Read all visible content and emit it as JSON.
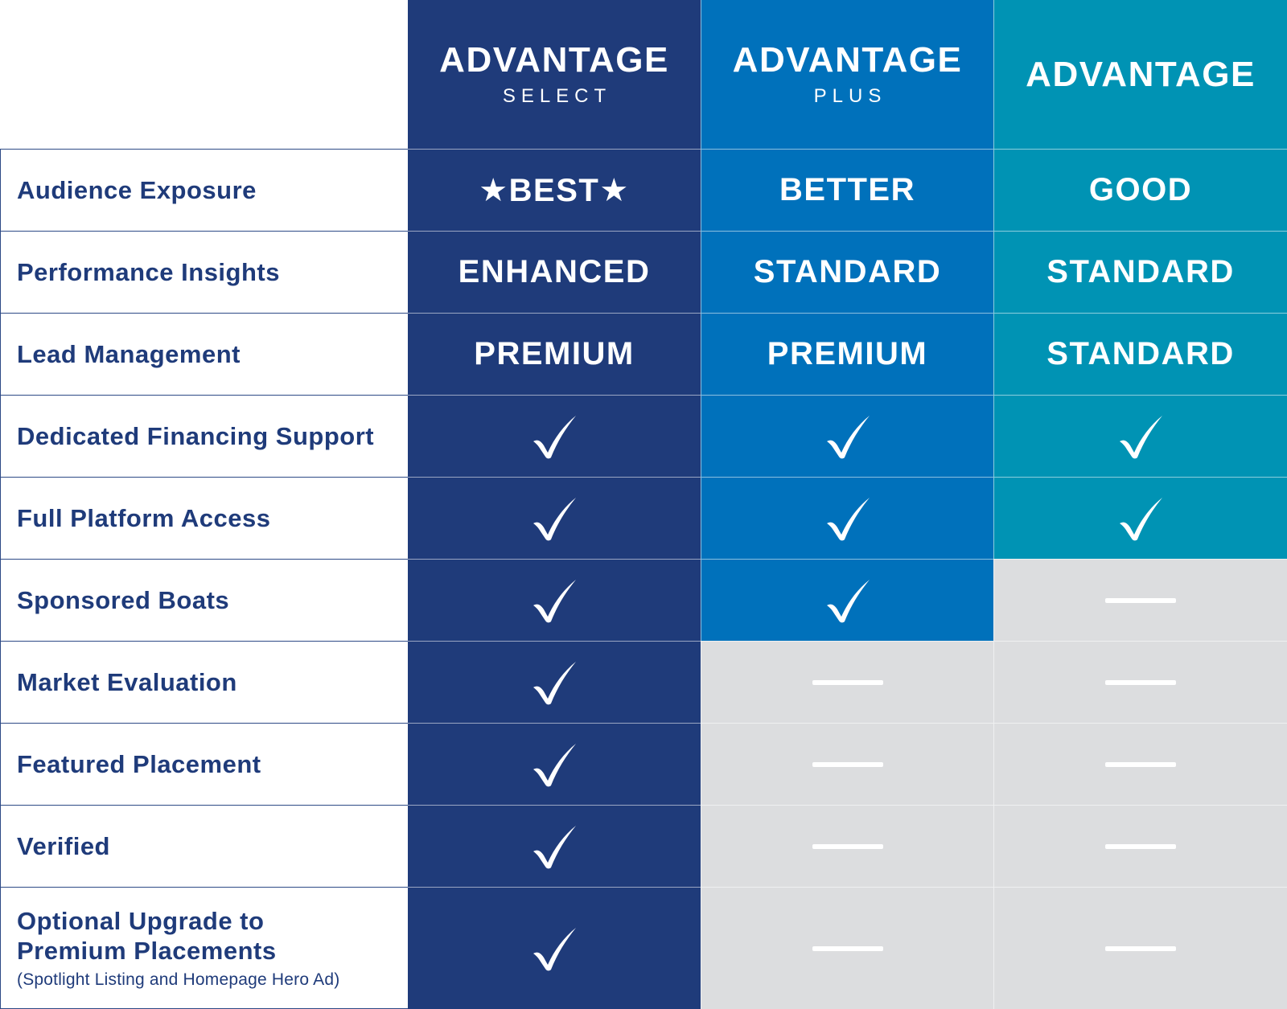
{
  "tiers": [
    {
      "title": "ADVANTAGE",
      "subtitle": "SELECT",
      "color": "#1f3b7a"
    },
    {
      "title": "ADVANTAGE",
      "subtitle": "PLUS",
      "color": "#0071bb"
    },
    {
      "title": "ADVANTAGE",
      "subtitle": "",
      "color": "#0093b4"
    }
  ],
  "unavailable_color": "#dcdddf",
  "label_color": "#1f3b7a",
  "rows": [
    {
      "label": "Audience Exposure",
      "values": [
        "★BEST★",
        "BETTER",
        "GOOD"
      ]
    },
    {
      "label": "Performance Insights",
      "values": [
        "ENHANCED",
        "STANDARD",
        "STANDARD"
      ]
    },
    {
      "label": "Lead Management",
      "values": [
        "PREMIUM",
        "PREMIUM",
        "STANDARD"
      ]
    },
    {
      "label": "Dedicated Financing Support",
      "values": [
        "check",
        "check",
        "check"
      ]
    },
    {
      "label": "Full Platform Access",
      "values": [
        "check",
        "check",
        "check"
      ]
    },
    {
      "label": "Sponsored Boats",
      "values": [
        "check",
        "check",
        "dash"
      ]
    },
    {
      "label": "Market Evaluation",
      "values": [
        "check",
        "dash",
        "dash"
      ]
    },
    {
      "label": "Featured Placement",
      "values": [
        "check",
        "dash",
        "dash"
      ]
    },
    {
      "label": "Verified",
      "values": [
        "check",
        "dash",
        "dash"
      ]
    },
    {
      "label": "Optional Upgrade to Premium Placements",
      "sublabel": "(Spotlight Listing and Homepage Hero Ad)",
      "values": [
        "check",
        "dash",
        "dash"
      ]
    }
  ],
  "icons": {
    "check": "checkmark-icon",
    "dash": "not-included-dash-icon"
  }
}
